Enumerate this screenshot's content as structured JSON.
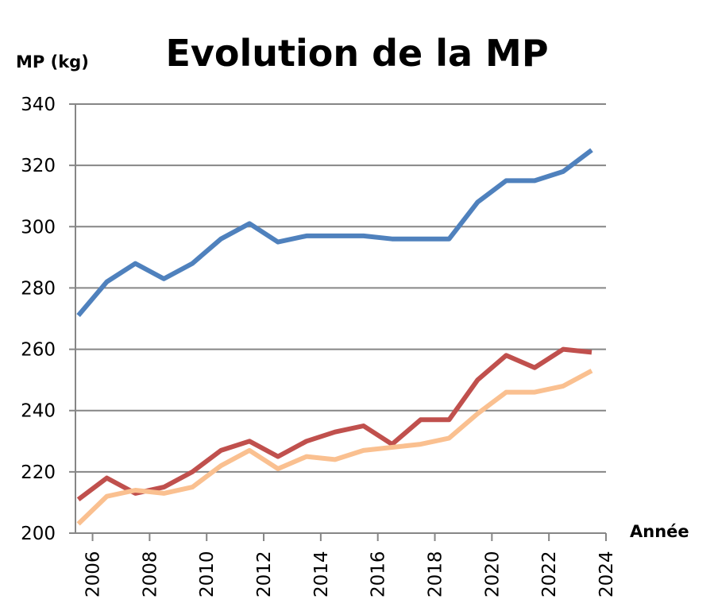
{
  "chart_data": {
    "type": "line",
    "title": "Evolution de la MP",
    "ylabel": "MP (kg)",
    "xlabel": "Année",
    "ylim": [
      200,
      340
    ],
    "y_ticks": [
      200,
      220,
      240,
      260,
      280,
      300,
      320,
      340
    ],
    "x_ticks": [
      "2006",
      "2008",
      "2010",
      "2012",
      "2014",
      "2016",
      "2018",
      "2020",
      "2022",
      "2024"
    ],
    "xlim": [
      2005.4,
      2024
    ],
    "grid": "horizontal",
    "x": [
      2005.5,
      2006.5,
      2007.5,
      2008.5,
      2009.5,
      2010.5,
      2011.5,
      2012.5,
      2013.5,
      2014.5,
      2015.5,
      2016.5,
      2017.5,
      2018.5,
      2019.5,
      2020.5,
      2021.5,
      2022.5,
      2023.5
    ],
    "series": [
      {
        "color": "#4f81bd",
        "values": [
          271,
          282,
          288,
          283,
          288,
          296,
          301,
          295,
          297,
          297,
          297,
          296,
          296,
          296,
          308,
          315,
          315,
          318,
          325
        ]
      },
      {
        "color": "#c0504d",
        "values": [
          211,
          218,
          213,
          215,
          220,
          227,
          230,
          225,
          230,
          233,
          235,
          229,
          237,
          237,
          250,
          258,
          254,
          260,
          259
        ]
      },
      {
        "color": "#fac090",
        "values": [
          203,
          212,
          214,
          213,
          215,
          222,
          227,
          221,
          225,
          224,
          227,
          228,
          229,
          231,
          239,
          246,
          246,
          248,
          253
        ]
      }
    ]
  }
}
